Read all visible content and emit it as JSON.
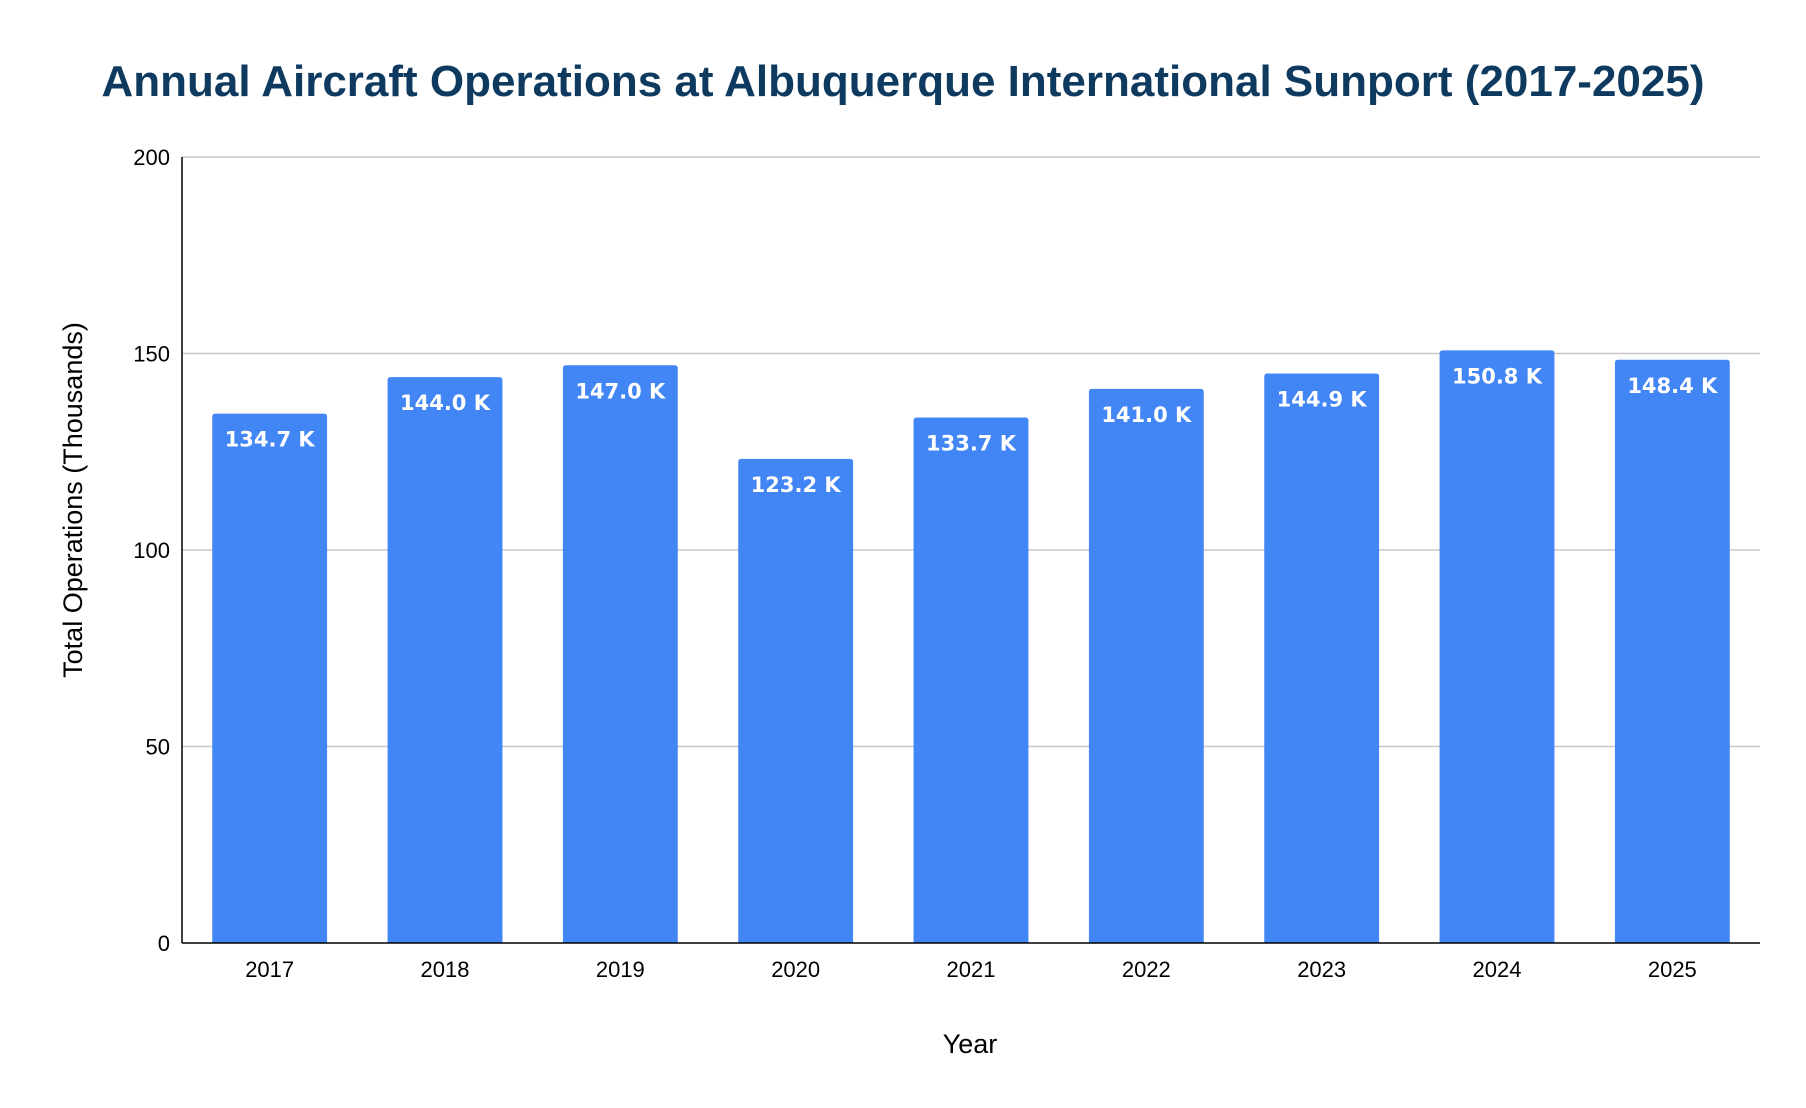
{
  "chart_data": {
    "type": "bar",
    "title": "Annual Aircraft Operations at Albuquerque International Sunport (2017-2025)",
    "xlabel": "Year",
    "ylabel": "Total Operations (Thousands)",
    "categories": [
      "2017",
      "2018",
      "2019",
      "2020",
      "2021",
      "2022",
      "2023",
      "2024",
      "2025"
    ],
    "values": [
      134.7,
      144.0,
      147.0,
      123.2,
      133.7,
      141.0,
      144.9,
      150.8,
      148.4
    ],
    "data_labels": [
      "134.7 K",
      "144.0 K",
      "147.0 K",
      "123.2 K",
      "133.7 K",
      "141.0 K",
      "144.9 K",
      "150.8 K",
      "148.4 K"
    ],
    "ylim": [
      0,
      200
    ],
    "yticks": [
      "0",
      "50",
      "100",
      "150",
      "200"
    ],
    "grid": true,
    "legend": "none",
    "colors": {
      "bar": "#4285F4",
      "title": "#0D3A5E",
      "grid": "#C8C8C8",
      "axis": "#000000",
      "label_text": "#FFFFFF"
    }
  }
}
